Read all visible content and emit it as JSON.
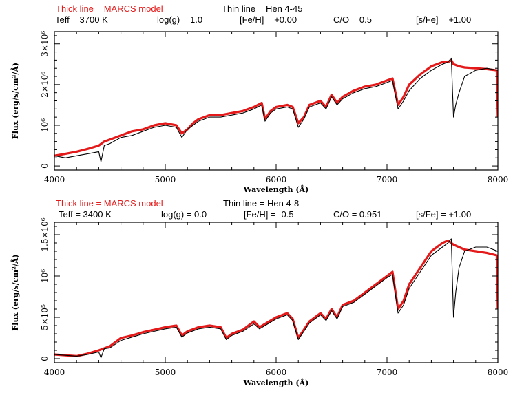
{
  "colors": {
    "model": "#e41a1a",
    "observed": "#000000",
    "frame": "#000000"
  },
  "chart_data": [
    {
      "type": "line",
      "header_model": "Thick line = MARCS model",
      "header_object": "Thin line = Hen 4-45",
      "params": [
        "Teff = 3700 K",
        "log(g) = 1.0",
        "[Fe/H] = +0.00",
        "C/O = 0.5",
        "[s/Fe] = +1.00"
      ],
      "xlabel": "Wavelength (Å)",
      "ylabel": "Flux (erg/s/cm²/Å)",
      "xlim": [
        4000,
        8000
      ],
      "ylim": [
        -100000,
        3300000
      ],
      "xticks": [
        4000,
        5000,
        6000,
        7000,
        8000
      ],
      "xtick_labels": [
        "4000",
        "5000",
        "6000",
        "7000",
        "8000"
      ],
      "yticks": [
        0,
        1000000,
        2000000,
        3000000
      ],
      "ytick_labels": [
        "0",
        "10⁶",
        "2×10⁶",
        "3×10⁶"
      ],
      "series": [
        {
          "style": "thick",
          "x": [
            4000,
            4100,
            4200,
            4300,
            4400,
            4450,
            4500,
            4600,
            4700,
            4800,
            4900,
            5000,
            5100,
            5150,
            5200,
            5250,
            5300,
            5400,
            5500,
            5600,
            5700,
            5800,
            5870,
            5900,
            5950,
            6000,
            6100,
            6150,
            6200,
            6250,
            6300,
            6400,
            6450,
            6500,
            6550,
            6600,
            6700,
            6800,
            6900,
            7000,
            7050,
            7100,
            7150,
            7200,
            7300,
            7400,
            7500,
            7550,
            7580,
            7600,
            7650,
            7700,
            7800,
            7900,
            7990,
            8000
          ],
          "y": [
            250000,
            300000,
            350000,
            420000,
            500000,
            600000,
            650000,
            750000,
            850000,
            900000,
            1000000,
            1050000,
            1000000,
            800000,
            900000,
            1050000,
            1150000,
            1250000,
            1250000,
            1300000,
            1350000,
            1450000,
            1550000,
            1150000,
            1350000,
            1450000,
            1500000,
            1450000,
            1050000,
            1200000,
            1500000,
            1600000,
            1450000,
            1750000,
            1550000,
            1700000,
            1850000,
            1950000,
            2000000,
            2100000,
            2150000,
            1500000,
            1700000,
            2000000,
            2250000,
            2450000,
            2550000,
            2550000,
            2600000,
            2500000,
            2450000,
            2420000,
            2400000,
            2380000,
            2350000,
            1200000
          ]
        },
        {
          "style": "thin",
          "x": [
            4000,
            4100,
            4200,
            4300,
            4400,
            4420,
            4450,
            4500,
            4600,
            4700,
            4800,
            4900,
            5000,
            5100,
            5150,
            5200,
            5250,
            5300,
            5400,
            5500,
            5600,
            5700,
            5800,
            5870,
            5900,
            5950,
            6000,
            6100,
            6150,
            6200,
            6250,
            6300,
            6400,
            6450,
            6500,
            6550,
            6600,
            6700,
            6800,
            6900,
            7000,
            7050,
            7100,
            7150,
            7200,
            7300,
            7400,
            7500,
            7550,
            7580,
            7600,
            7620,
            7650,
            7700,
            7800,
            7900,
            8000
          ],
          "y": [
            250000,
            200000,
            250000,
            300000,
            350000,
            100000,
            500000,
            550000,
            700000,
            750000,
            850000,
            950000,
            1000000,
            950000,
            700000,
            900000,
            1000000,
            1100000,
            1200000,
            1200000,
            1250000,
            1300000,
            1400000,
            1500000,
            1100000,
            1300000,
            1400000,
            1450000,
            1400000,
            950000,
            1150000,
            1450000,
            1550000,
            1400000,
            1700000,
            1500000,
            1650000,
            1800000,
            1900000,
            1950000,
            2050000,
            2100000,
            1400000,
            1600000,
            1850000,
            2150000,
            2350000,
            2500000,
            2550000,
            2650000,
            1200000,
            1500000,
            1800000,
            2200000,
            2350000,
            2400000,
            2350000
          ]
        }
      ]
    },
    {
      "type": "line",
      "header_model": "Thick line = MARCS model",
      "header_object": "Thin line = Hen 4-8",
      "params": [
        "Teff = 3400 K",
        "log(g) = 0.0",
        "[Fe/H] = -0.5",
        "C/O = 0.951",
        "[s/Fe] = +1.00"
      ],
      "xlabel": "Wavelength (Å)",
      "ylabel": "Flux (erg/s/cm²/Å)",
      "xlim": [
        4000,
        8000
      ],
      "ylim": [
        -50000,
        1650000
      ],
      "xticks": [
        4000,
        5000,
        6000,
        7000,
        8000
      ],
      "xtick_labels": [
        "4000",
        "5000",
        "6000",
        "7000",
        "8000"
      ],
      "yticks": [
        0,
        500000,
        1000000,
        1500000
      ],
      "ytick_labels": [
        "0",
        "5×10⁵",
        "10⁶",
        "1.5×10⁶"
      ],
      "series": [
        {
          "style": "thick",
          "x": [
            4000,
            4100,
            4200,
            4300,
            4400,
            4500,
            4600,
            4700,
            4800,
            4900,
            5000,
            5100,
            5150,
            5200,
            5300,
            5400,
            5500,
            5550,
            5600,
            5700,
            5800,
            5850,
            5900,
            6000,
            6100,
            6150,
            6200,
            6250,
            6300,
            6400,
            6450,
            6500,
            6550,
            6600,
            6700,
            6800,
            6900,
            7000,
            7050,
            7100,
            7150,
            7200,
            7300,
            7400,
            7500,
            7550,
            7600,
            7650,
            7700,
            7800,
            7900,
            7990,
            8000
          ],
          "y": [
            50000,
            40000,
            30000,
            60000,
            100000,
            150000,
            250000,
            280000,
            320000,
            350000,
            380000,
            400000,
            280000,
            330000,
            380000,
            400000,
            380000,
            250000,
            300000,
            350000,
            450000,
            380000,
            420000,
            500000,
            550000,
            480000,
            250000,
            350000,
            450000,
            550000,
            480000,
            600000,
            500000,
            650000,
            700000,
            800000,
            900000,
            1000000,
            1050000,
            600000,
            700000,
            900000,
            1100000,
            1300000,
            1400000,
            1430000,
            1380000,
            1350000,
            1320000,
            1300000,
            1280000,
            1250000,
            600000
          ]
        },
        {
          "style": "thin",
          "x": [
            4000,
            4100,
            4200,
            4300,
            4400,
            4420,
            4450,
            4500,
            4600,
            4700,
            4800,
            4900,
            5000,
            5100,
            5150,
            5200,
            5300,
            5400,
            5500,
            5550,
            5600,
            5700,
            5800,
            5850,
            5900,
            6000,
            6100,
            6150,
            6200,
            6250,
            6300,
            6400,
            6450,
            6500,
            6550,
            6600,
            6700,
            6800,
            6900,
            7000,
            7050,
            7100,
            7150,
            7200,
            7300,
            7400,
            7500,
            7550,
            7580,
            7600,
            7620,
            7650,
            7700,
            7800,
            7900,
            8000
          ],
          "y": [
            50000,
            40000,
            30000,
            50000,
            80000,
            10000,
            120000,
            130000,
            220000,
            260000,
            300000,
            330000,
            360000,
            380000,
            260000,
            310000,
            360000,
            380000,
            360000,
            230000,
            280000,
            330000,
            420000,
            360000,
            400000,
            480000,
            530000,
            460000,
            230000,
            330000,
            430000,
            530000,
            460000,
            580000,
            480000,
            630000,
            680000,
            780000,
            880000,
            980000,
            1020000,
            550000,
            650000,
            850000,
            1050000,
            1250000,
            1350000,
            1400000,
            1450000,
            500000,
            800000,
            1100000,
            1300000,
            1350000,
            1350000,
            1300000
          ]
        }
      ]
    }
  ]
}
